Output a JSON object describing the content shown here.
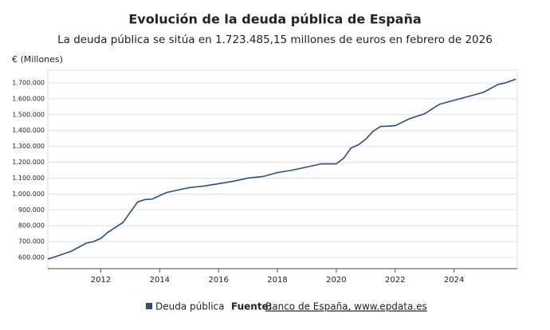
{
  "chart_data": {
    "type": "line",
    "title": "Evolución de la deuda pública de España",
    "subtitle": "La deuda pública se sitúa en 1.723.485,15 millones de euros en febrero de 2026",
    "y_label": "€ (Millones)",
    "x": [
      2010.2,
      2010.5,
      2011.0,
      2011.5,
      2011.75,
      2012.0,
      2012.25,
      2012.5,
      2012.75,
      2013.0,
      2013.25,
      2013.5,
      2013.75,
      2014.0,
      2014.25,
      2014.5,
      2014.75,
      2015.0,
      2015.5,
      2016.0,
      2016.5,
      2017.0,
      2017.5,
      2018.0,
      2018.5,
      2019.0,
      2019.5,
      2020.0,
      2020.25,
      2020.5,
      2020.75,
      2021.0,
      2021.25,
      2021.5,
      2022.0,
      2022.5,
      2023.0,
      2023.25,
      2023.5,
      2024.0,
      2024.5,
      2025.0,
      2025.5,
      2025.75,
      2026.1
    ],
    "series": [
      {
        "name": "Deuda pública",
        "color": "#2c4f7c",
        "values": [
          590000,
          608000,
          640000,
          690000,
          700000,
          720000,
          760000,
          790000,
          820000,
          885000,
          950000,
          965000,
          968000,
          990000,
          1010000,
          1020000,
          1030000,
          1040000,
          1050000,
          1065000,
          1080000,
          1100000,
          1110000,
          1135000,
          1150000,
          1170000,
          1190000,
          1190000,
          1225000,
          1290000,
          1310000,
          1345000,
          1395000,
          1425000,
          1430000,
          1475000,
          1505000,
          1535000,
          1565000,
          1590000,
          1615000,
          1640000,
          1690000,
          1700000,
          1723485.15
        ]
      }
    ],
    "xlim": [
      2010.2,
      2026.15
    ],
    "ylim": [
      530000,
      1780000
    ],
    "xticks": [
      2012,
      2014,
      2016,
      2018,
      2020,
      2022,
      2024
    ],
    "yticks": [
      {
        "value": 600000,
        "label": "600.000"
      },
      {
        "value": 700000,
        "label": "700.000"
      },
      {
        "value": 800000,
        "label": "800.000"
      },
      {
        "value": 900000,
        "label": "900.000"
      },
      {
        "value": 1000000,
        "label": "1.000.000"
      },
      {
        "value": 1100000,
        "label": "1.100.000"
      },
      {
        "value": 1200000,
        "label": "1.200.000"
      },
      {
        "value": 1300000,
        "label": "1.300.000"
      },
      {
        "value": 1400000,
        "label": "1.400.000"
      },
      {
        "value": 1500000,
        "label": "1.500.000"
      },
      {
        "value": 1600000,
        "label": "1.600.000"
      },
      {
        "value": 1700000,
        "label": "1.700.000"
      }
    ],
    "grid": true,
    "source_label": "Fuente:",
    "source": "Banco de España, www.epdata.es"
  }
}
